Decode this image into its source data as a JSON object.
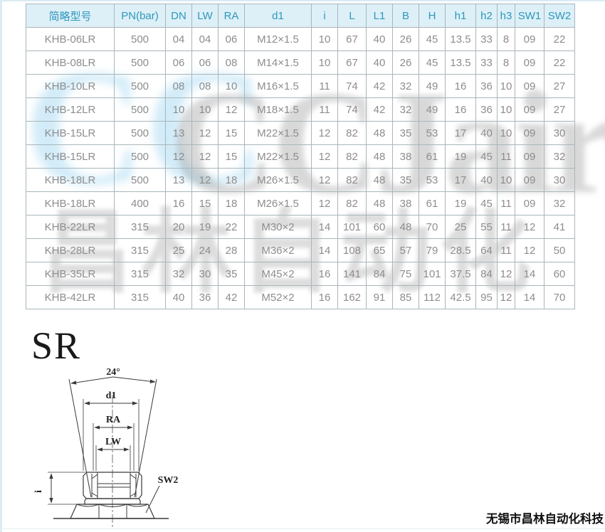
{
  "page": {
    "section_label": "SR",
    "company_footer": "无锡市昌林自动化科技"
  },
  "colors": {
    "header_bg": "#ddf0f8",
    "header_text": "#2f96ba",
    "cell_text": "#8d8d8d",
    "grid_border": "#a9b6bb",
    "edge_line": "#dcebf4",
    "watermark_blue": "#aedcf3",
    "watermark_gray": "#8f8f8f"
  },
  "watermark": {
    "blue_text": "CC",
    "gray_text": "CCJair",
    "gray_text_cn": "昌林自动化"
  },
  "table": {
    "headers": [
      "简略型号",
      "PN(bar)",
      "DN",
      "LW",
      "RA",
      "d1",
      "i",
      "L",
      "L1",
      "B",
      "H",
      "h1",
      "h2",
      "h3",
      "SW1",
      "SW2"
    ],
    "rows": [
      [
        "KHB-06LR",
        "500",
        "04",
        "04",
        "06",
        "M12×1.5",
        "10",
        "67",
        "40",
        "26",
        "45",
        "13.5",
        "33",
        "8",
        "09",
        "22"
      ],
      [
        "KHB-08LR",
        "500",
        "06",
        "06",
        "08",
        "M14×1.5",
        "10",
        "67",
        "40",
        "26",
        "45",
        "13.5",
        "33",
        "8",
        "09",
        "22"
      ],
      [
        "KHB-10LR",
        "500",
        "08",
        "08",
        "10",
        "M16×1.5",
        "11",
        "74",
        "42",
        "32",
        "49",
        "16",
        "36",
        "10",
        "09",
        "27"
      ],
      [
        "KHB-12LR",
        "500",
        "10",
        "10",
        "12",
        "M18×1.5",
        "11",
        "74",
        "42",
        "32",
        "49",
        "16",
        "36",
        "10",
        "09",
        "27"
      ],
      [
        "KHB-15LR",
        "500",
        "13",
        "12",
        "15",
        "M22×1.5",
        "12",
        "82",
        "48",
        "35",
        "53",
        "17",
        "40",
        "10",
        "09",
        "30"
      ],
      [
        "KHB-15LR",
        "500",
        "12",
        "12",
        "15",
        "M22×1.5",
        "12",
        "82",
        "48",
        "38",
        "61",
        "19",
        "45",
        "11",
        "09",
        "32"
      ],
      [
        "KHB-18LR",
        "500",
        "13",
        "12",
        "18",
        "M26×1.5",
        "12",
        "82",
        "48",
        "35",
        "53",
        "17",
        "40",
        "10",
        "09",
        "30"
      ],
      [
        "KHB-18LR",
        "400",
        "16",
        "15",
        "18",
        "M26×1.5",
        "12",
        "82",
        "48",
        "38",
        "61",
        "19",
        "45",
        "11",
        "09",
        "32"
      ],
      [
        "KHB-22LR",
        "315",
        "20",
        "19",
        "22",
        "M30×2",
        "14",
        "101",
        "60",
        "48",
        "70",
        "25",
        "55",
        "11",
        "12",
        "41"
      ],
      [
        "KHB-28LR",
        "315",
        "25",
        "24",
        "28",
        "M36×2",
        "14",
        "108",
        "65",
        "57",
        "79",
        "28.5",
        "64",
        "11",
        "12",
        "50"
      ],
      [
        "KHB-35LR",
        "315",
        "32",
        "30",
        "35",
        "M45×2",
        "16",
        "141",
        "84",
        "75",
        "101",
        "37.5",
        "84",
        "12",
        "14",
        "60"
      ],
      [
        "KHB-42LR",
        "315",
        "40",
        "36",
        "42",
        "M52×2",
        "16",
        "162",
        "91",
        "85",
        "112",
        "42.5",
        "95",
        "12",
        "14",
        "70"
      ]
    ]
  },
  "diagram": {
    "labels": {
      "angle": "24°",
      "d1": "d1",
      "ra": "RA",
      "lw": "LW",
      "sw2": "SW2",
      "i": "i"
    }
  }
}
